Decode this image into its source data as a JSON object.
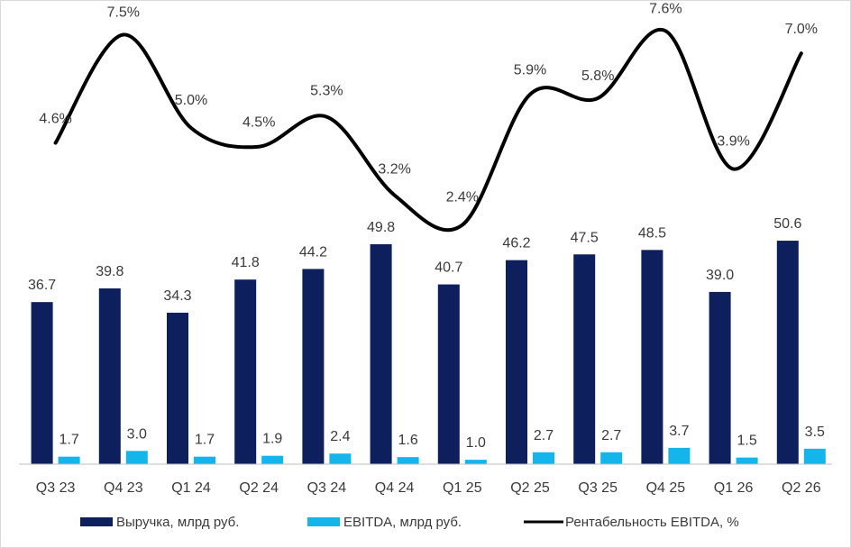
{
  "chart_data": {
    "type": "bar",
    "categories": [
      "Q3 23",
      "Q4 23",
      "Q1 24",
      "Q2 24",
      "Q3 24",
      "Q4 24",
      "Q1 25",
      "Q2 25",
      "Q3 25",
      "Q4 25",
      "Q1 26",
      "Q2 26"
    ],
    "series": [
      {
        "name": "Выручка, млрд руб.",
        "type": "bar",
        "color": "#0d1f5c",
        "values": [
          36.7,
          39.8,
          34.3,
          41.8,
          44.2,
          49.8,
          40.7,
          46.2,
          47.5,
          48.5,
          39.0,
          50.6
        ],
        "labels": [
          "36.7",
          "39.8",
          "34.3",
          "41.8",
          "44.2",
          "49.8",
          "40.7",
          "46.2",
          "47.5",
          "48.5",
          "39.0",
          "50.6"
        ]
      },
      {
        "name": "EBITDA, млрд руб.",
        "type": "bar",
        "color": "#13b5ea",
        "values": [
          1.7,
          3.0,
          1.7,
          1.9,
          2.4,
          1.6,
          1.0,
          2.7,
          2.7,
          3.7,
          1.5,
          3.5
        ],
        "labels": [
          "1.7",
          "3.0",
          "1.7",
          "1.9",
          "2.4",
          "1.6",
          "1.0",
          "2.7",
          "2.7",
          "3.7",
          "1.5",
          "3.5"
        ]
      },
      {
        "name": "Рентабельность EBITDA, %",
        "type": "line",
        "color": "#000000",
        "values": [
          4.6,
          7.5,
          5.0,
          4.5,
          5.3,
          3.2,
          2.4,
          5.9,
          5.8,
          7.6,
          3.9,
          7.0
        ],
        "labels": [
          "4.6%",
          "7.5%",
          "5.0%",
          "4.5%",
          "5.3%",
          "3.2%",
          "2.4%",
          "5.9%",
          "5.8%",
          "7.6%",
          "3.9%",
          "7.0%"
        ]
      }
    ],
    "legend_position": "bottom",
    "grid": false
  }
}
